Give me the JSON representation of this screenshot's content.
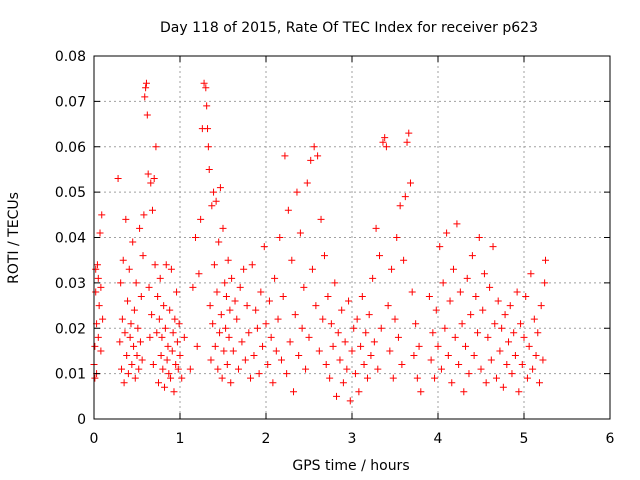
{
  "chart_data": {
    "type": "scatter",
    "title": "Day 118 of 2015, Rate Of TEC Index for receiver p623",
    "xlabel": "GPS time / hours",
    "ylabel": "ROTI / TECUs",
    "xlim": [
      0,
      6
    ],
    "ylim": [
      0,
      0.08
    ],
    "xticks": [
      0,
      1,
      2,
      3,
      4,
      5,
      6
    ],
    "xtick_labels": [
      "0",
      "1",
      "2",
      "3",
      "4",
      "5",
      "6"
    ],
    "yticks": [
      0,
      0.01,
      0.02,
      0.03,
      0.04,
      0.05,
      0.06,
      0.07,
      0.08
    ],
    "ytick_labels": [
      "0",
      "0.01",
      "0.02",
      "0.03",
      "0.04",
      "0.05",
      "0.06",
      "0.07",
      "0.08"
    ],
    "grid": true,
    "marker": "+",
    "marker_color": "#ff0000",
    "series": [
      {
        "name": "ROTI",
        "points": [
          [
            0.0,
            0.012
          ],
          [
            0.01,
            0.016
          ],
          [
            0.01,
            0.009
          ],
          [
            0.02,
            0.028
          ],
          [
            0.02,
            0.033
          ],
          [
            0.03,
            0.021
          ],
          [
            0.03,
            0.01
          ],
          [
            0.04,
            0.034
          ],
          [
            0.05,
            0.018
          ],
          [
            0.05,
            0.031
          ],
          [
            0.06,
            0.025
          ],
          [
            0.07,
            0.041
          ],
          [
            0.08,
            0.015
          ],
          [
            0.08,
            0.029
          ],
          [
            0.09,
            0.045
          ],
          [
            0.1,
            0.022
          ],
          [
            0.28,
            0.053
          ],
          [
            0.3,
            0.017
          ],
          [
            0.31,
            0.03
          ],
          [
            0.32,
            0.011
          ],
          [
            0.33,
            0.022
          ],
          [
            0.34,
            0.035
          ],
          [
            0.35,
            0.008
          ],
          [
            0.36,
            0.019
          ],
          [
            0.37,
            0.044
          ],
          [
            0.38,
            0.014
          ],
          [
            0.39,
            0.026
          ],
          [
            0.4,
            0.01
          ],
          [
            0.41,
            0.033
          ],
          [
            0.42,
            0.018
          ],
          [
            0.43,
            0.021
          ],
          [
            0.44,
            0.012
          ],
          [
            0.45,
            0.039
          ],
          [
            0.46,
            0.016
          ],
          [
            0.47,
            0.024
          ],
          [
            0.48,
            0.009
          ],
          [
            0.49,
            0.03
          ],
          [
            0.5,
            0.014
          ],
          [
            0.51,
            0.02
          ],
          [
            0.52,
            0.011
          ],
          [
            0.53,
            0.042
          ],
          [
            0.54,
            0.017
          ],
          [
            0.55,
            0.027
          ],
          [
            0.56,
            0.013
          ],
          [
            0.57,
            0.036
          ],
          [
            0.58,
            0.045
          ],
          [
            0.59,
            0.071
          ],
          [
            0.6,
            0.073
          ],
          [
            0.61,
            0.074
          ],
          [
            0.62,
            0.067
          ],
          [
            0.63,
            0.054
          ],
          [
            0.64,
            0.029
          ],
          [
            0.65,
            0.018
          ],
          [
            0.66,
            0.052
          ],
          [
            0.67,
            0.023
          ],
          [
            0.68,
            0.046
          ],
          [
            0.69,
            0.012
          ],
          [
            0.7,
            0.053
          ],
          [
            0.71,
            0.034
          ],
          [
            0.72,
            0.06
          ],
          [
            0.73,
            0.019
          ],
          [
            0.74,
            0.027
          ],
          [
            0.75,
            0.008
          ],
          [
            0.76,
            0.022
          ],
          [
            0.77,
            0.031
          ],
          [
            0.78,
            0.014
          ],
          [
            0.79,
            0.018
          ],
          [
            0.8,
            0.011
          ],
          [
            0.81,
            0.025
          ],
          [
            0.82,
            0.007
          ],
          [
            0.83,
            0.02
          ],
          [
            0.84,
            0.034
          ],
          [
            0.85,
            0.013
          ],
          [
            0.86,
            0.016
          ],
          [
            0.87,
            0.01
          ],
          [
            0.88,
            0.024
          ],
          [
            0.89,
            0.009
          ],
          [
            0.9,
            0.033
          ],
          [
            0.91,
            0.015
          ],
          [
            0.92,
            0.019
          ],
          [
            0.93,
            0.006
          ],
          [
            0.94,
            0.022
          ],
          [
            0.95,
            0.012
          ],
          [
            0.96,
            0.028
          ],
          [
            0.97,
            0.017
          ],
          [
            0.98,
            0.011
          ],
          [
            0.99,
            0.021
          ],
          [
            1.0,
            0.014
          ],
          [
            1.02,
            0.009
          ],
          [
            1.05,
            0.018
          ],
          [
            1.12,
            0.011
          ],
          [
            1.15,
            0.029
          ],
          [
            1.18,
            0.04
          ],
          [
            1.2,
            0.016
          ],
          [
            1.22,
            0.032
          ],
          [
            1.24,
            0.044
          ],
          [
            1.26,
            0.064
          ],
          [
            1.28,
            0.074
          ],
          [
            1.3,
            0.073
          ],
          [
            1.31,
            0.069
          ],
          [
            1.32,
            0.064
          ],
          [
            1.33,
            0.06
          ],
          [
            1.34,
            0.055
          ],
          [
            1.35,
            0.025
          ],
          [
            1.36,
            0.013
          ],
          [
            1.37,
            0.047
          ],
          [
            1.38,
            0.021
          ],
          [
            1.39,
            0.05
          ],
          [
            1.4,
            0.034
          ],
          [
            1.41,
            0.016
          ],
          [
            1.42,
            0.048
          ],
          [
            1.43,
            0.028
          ],
          [
            1.44,
            0.011
          ],
          [
            1.45,
            0.039
          ],
          [
            1.46,
            0.019
          ],
          [
            1.47,
            0.051
          ],
          [
            1.48,
            0.023
          ],
          [
            1.49,
            0.009
          ],
          [
            1.5,
            0.042
          ],
          [
            1.51,
            0.015
          ],
          [
            1.52,
            0.03
          ],
          [
            1.53,
            0.02
          ],
          [
            1.54,
            0.027
          ],
          [
            1.55,
            0.012
          ],
          [
            1.56,
            0.035
          ],
          [
            1.57,
            0.018
          ],
          [
            1.58,
            0.024
          ],
          [
            1.59,
            0.008
          ],
          [
            1.6,
            0.031
          ],
          [
            1.62,
            0.015
          ],
          [
            1.64,
            0.026
          ],
          [
            1.66,
            0.022
          ],
          [
            1.68,
            0.011
          ],
          [
            1.7,
            0.029
          ],
          [
            1.72,
            0.017
          ],
          [
            1.74,
            0.033
          ],
          [
            1.76,
            0.013
          ],
          [
            1.78,
            0.025
          ],
          [
            1.8,
            0.019
          ],
          [
            1.82,
            0.009
          ],
          [
            1.84,
            0.034
          ],
          [
            1.86,
            0.014
          ],
          [
            1.88,
            0.024
          ],
          [
            1.9,
            0.02
          ],
          [
            1.92,
            0.01
          ],
          [
            1.94,
            0.028
          ],
          [
            1.96,
            0.016
          ],
          [
            1.98,
            0.038
          ],
          [
            2.0,
            0.021
          ],
          [
            2.02,
            0.012
          ],
          [
            2.04,
            0.026
          ],
          [
            2.06,
            0.018
          ],
          [
            2.08,
            0.008
          ],
          [
            2.1,
            0.031
          ],
          [
            2.12,
            0.015
          ],
          [
            2.14,
            0.022
          ],
          [
            2.16,
            0.04
          ],
          [
            2.18,
            0.013
          ],
          [
            2.2,
            0.027
          ],
          [
            2.22,
            0.058
          ],
          [
            2.24,
            0.01
          ],
          [
            2.26,
            0.046
          ],
          [
            2.28,
            0.017
          ],
          [
            2.3,
            0.035
          ],
          [
            2.32,
            0.006
          ],
          [
            2.34,
            0.023
          ],
          [
            2.36,
            0.05
          ],
          [
            2.38,
            0.014
          ],
          [
            2.4,
            0.041
          ],
          [
            2.42,
            0.02
          ],
          [
            2.44,
            0.029
          ],
          [
            2.46,
            0.011
          ],
          [
            2.48,
            0.052
          ],
          [
            2.5,
            0.018
          ],
          [
            2.52,
            0.057
          ],
          [
            2.54,
            0.033
          ],
          [
            2.56,
            0.06
          ],
          [
            2.58,
            0.025
          ],
          [
            2.6,
            0.058
          ],
          [
            2.62,
            0.015
          ],
          [
            2.64,
            0.044
          ],
          [
            2.66,
            0.022
          ],
          [
            2.68,
            0.036
          ],
          [
            2.7,
            0.012
          ],
          [
            2.72,
            0.027
          ],
          [
            2.74,
            0.009
          ],
          [
            2.76,
            0.021
          ],
          [
            2.78,
            0.016
          ],
          [
            2.8,
            0.03
          ],
          [
            2.82,
            0.005
          ],
          [
            2.84,
            0.019
          ],
          [
            2.86,
            0.013
          ],
          [
            2.88,
            0.024
          ],
          [
            2.9,
            0.008
          ],
          [
            2.92,
            0.017
          ],
          [
            2.94,
            0.011
          ],
          [
            2.96,
            0.026
          ],
          [
            2.98,
            0.004
          ],
          [
            3.0,
            0.015
          ],
          [
            3.02,
            0.02
          ],
          [
            3.04,
            0.01
          ],
          [
            3.06,
            0.022
          ],
          [
            3.08,
            0.006
          ],
          [
            3.1,
            0.016
          ],
          [
            3.12,
            0.027
          ],
          [
            3.14,
            0.012
          ],
          [
            3.16,
            0.019
          ],
          [
            3.18,
            0.009
          ],
          [
            3.2,
            0.023
          ],
          [
            3.22,
            0.014
          ],
          [
            3.24,
            0.031
          ],
          [
            3.26,
            0.017
          ],
          [
            3.28,
            0.042
          ],
          [
            3.3,
            0.011
          ],
          [
            3.32,
            0.036
          ],
          [
            3.34,
            0.02
          ],
          [
            3.36,
            0.061
          ],
          [
            3.38,
            0.062
          ],
          [
            3.4,
            0.06
          ],
          [
            3.42,
            0.025
          ],
          [
            3.44,
            0.015
          ],
          [
            3.46,
            0.033
          ],
          [
            3.48,
            0.009
          ],
          [
            3.5,
            0.022
          ],
          [
            3.52,
            0.04
          ],
          [
            3.54,
            0.018
          ],
          [
            3.56,
            0.047
          ],
          [
            3.58,
            0.012
          ],
          [
            3.6,
            0.035
          ],
          [
            3.62,
            0.049
          ],
          [
            3.64,
            0.061
          ],
          [
            3.66,
            0.063
          ],
          [
            3.68,
            0.052
          ],
          [
            3.7,
            0.028
          ],
          [
            3.72,
            0.014
          ],
          [
            3.74,
            0.021
          ],
          [
            3.76,
            0.009
          ],
          [
            3.78,
            0.016
          ],
          [
            3.8,
            0.006
          ],
          [
            3.9,
            0.027
          ],
          [
            3.92,
            0.013
          ],
          [
            3.94,
            0.019
          ],
          [
            3.96,
            0.009
          ],
          [
            3.98,
            0.024
          ],
          [
            4.0,
            0.016
          ],
          [
            4.02,
            0.038
          ],
          [
            4.04,
            0.011
          ],
          [
            4.06,
            0.03
          ],
          [
            4.08,
            0.02
          ],
          [
            4.1,
            0.041
          ],
          [
            4.12,
            0.014
          ],
          [
            4.14,
            0.026
          ],
          [
            4.16,
            0.008
          ],
          [
            4.18,
            0.033
          ],
          [
            4.2,
            0.018
          ],
          [
            4.22,
            0.043
          ],
          [
            4.24,
            0.012
          ],
          [
            4.26,
            0.028
          ],
          [
            4.28,
            0.021
          ],
          [
            4.3,
            0.006
          ],
          [
            4.32,
            0.016
          ],
          [
            4.34,
            0.031
          ],
          [
            4.36,
            0.01
          ],
          [
            4.38,
            0.023
          ],
          [
            4.4,
            0.036
          ],
          [
            4.42,
            0.014
          ],
          [
            4.44,
            0.027
          ],
          [
            4.46,
            0.019
          ],
          [
            4.48,
            0.04
          ],
          [
            4.5,
            0.011
          ],
          [
            4.52,
            0.024
          ],
          [
            4.54,
            0.032
          ],
          [
            4.56,
            0.008
          ],
          [
            4.58,
            0.018
          ],
          [
            4.6,
            0.029
          ],
          [
            4.62,
            0.013
          ],
          [
            4.64,
            0.038
          ],
          [
            4.66,
            0.021
          ],
          [
            4.68,
            0.009
          ],
          [
            4.7,
            0.026
          ],
          [
            4.72,
            0.015
          ],
          [
            4.74,
            0.02
          ],
          [
            4.76,
            0.007
          ],
          [
            4.78,
            0.023
          ],
          [
            4.8,
            0.012
          ],
          [
            4.82,
            0.017
          ],
          [
            4.84,
            0.025
          ],
          [
            4.86,
            0.01
          ],
          [
            4.88,
            0.019
          ],
          [
            4.9,
            0.014
          ],
          [
            4.92,
            0.028
          ],
          [
            4.94,
            0.006
          ],
          [
            4.96,
            0.021
          ],
          [
            4.98,
            0.012
          ],
          [
            5.0,
            0.018
          ],
          [
            5.02,
            0.027
          ],
          [
            5.04,
            0.009
          ],
          [
            5.06,
            0.016
          ],
          [
            5.08,
            0.032
          ],
          [
            5.1,
            0.011
          ],
          [
            5.12,
            0.022
          ],
          [
            5.14,
            0.014
          ],
          [
            5.16,
            0.019
          ],
          [
            5.18,
            0.008
          ],
          [
            5.2,
            0.025
          ],
          [
            5.22,
            0.013
          ],
          [
            5.24,
            0.03
          ],
          [
            5.25,
            0.035
          ]
        ]
      }
    ]
  }
}
